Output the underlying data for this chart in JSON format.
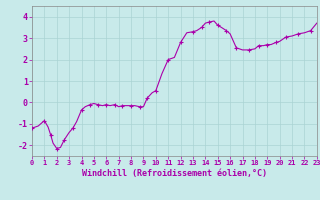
{
  "title": "",
  "xlabel": "Windchill (Refroidissement éolien,°C)",
  "ylabel": "",
  "background_color": "#c8eaea",
  "grid_color": "#aad4d4",
  "line_color": "#aa00aa",
  "marker_color": "#aa00aa",
  "xlim": [
    0,
    23
  ],
  "ylim": [
    -2.5,
    4.5
  ],
  "yticks": [
    -2,
    -1,
    0,
    1,
    2,
    3,
    4
  ],
  "xticks": [
    0,
    1,
    2,
    3,
    4,
    5,
    6,
    7,
    8,
    9,
    10,
    11,
    12,
    13,
    14,
    15,
    16,
    17,
    18,
    19,
    20,
    21,
    22,
    23
  ],
  "x": [
    0,
    0.5,
    1,
    1.3,
    1.5,
    1.7,
    2,
    2.3,
    2.6,
    3,
    3.3,
    3.6,
    4,
    4.3,
    4.7,
    5,
    5.3,
    5.7,
    6,
    6.3,
    6.7,
    7,
    7.3,
    7.7,
    8,
    8.3,
    8.7,
    9,
    9.3,
    9.7,
    10,
    10.5,
    11,
    11.5,
    12,
    12.5,
    13,
    13.3,
    13.7,
    14,
    14.3,
    14.7,
    15,
    15.3,
    15.7,
    16,
    16.5,
    17,
    17.5,
    18,
    18.3,
    18.7,
    19,
    19.3,
    19.7,
    20,
    20.5,
    21,
    21.5,
    22,
    22.5,
    23
  ],
  "y": [
    -1.2,
    -1.1,
    -0.85,
    -1.15,
    -1.5,
    -1.9,
    -2.15,
    -2.1,
    -1.75,
    -1.4,
    -1.2,
    -0.9,
    -0.35,
    -0.2,
    -0.1,
    -0.05,
    -0.1,
    -0.15,
    -0.1,
    -0.15,
    -0.1,
    -0.2,
    -0.15,
    -0.15,
    -0.15,
    -0.15,
    -0.2,
    -0.2,
    0.2,
    0.45,
    0.55,
    1.35,
    2.0,
    2.1,
    2.8,
    3.25,
    3.3,
    3.35,
    3.5,
    3.7,
    3.75,
    3.8,
    3.6,
    3.5,
    3.35,
    3.2,
    2.55,
    2.45,
    2.45,
    2.5,
    2.65,
    2.65,
    2.7,
    2.7,
    2.8,
    2.85,
    3.05,
    3.1,
    3.2,
    3.25,
    3.35,
    3.7
  ],
  "marker_indices": [
    0,
    2,
    4,
    6,
    8,
    10,
    12,
    14,
    16,
    18,
    20,
    22,
    24,
    26,
    28,
    30,
    32,
    34,
    36,
    38,
    40,
    42,
    44,
    46,
    48,
    50,
    52,
    54,
    56,
    58,
    60
  ],
  "tick_fontsize": 5,
  "xlabel_fontsize": 6,
  "label_color": "#aa00aa"
}
